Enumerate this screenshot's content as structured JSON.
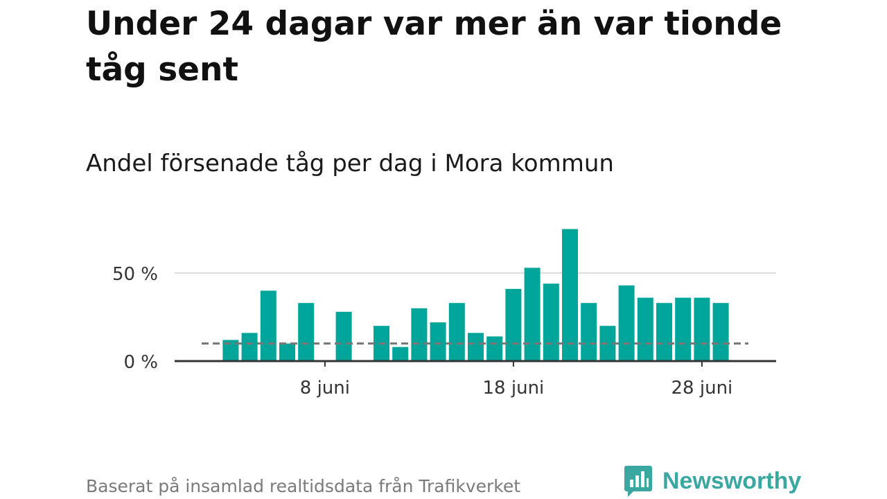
{
  "title": "Under 24 dagar var mer än var tionde tåg sent",
  "subtitle": "Andel försenade tåg per dag i Mora kommun",
  "footer": "Baserat på insamlad realtidsdata från Trafikverket",
  "brand": {
    "name": "Newsworthy",
    "icon": "newsworthy-logo-icon",
    "color": "#3aa7a0"
  },
  "chart_data": {
    "type": "bar",
    "title": "Andel försenade tåg per dag i Mora kommun",
    "unit": "%",
    "x": [
      "1 juni",
      "2 juni",
      "3 juni",
      "4 juni",
      "5 juni",
      "6 juni",
      "7 juni",
      "8 juni",
      "9 juni",
      "10 juni",
      "11 juni",
      "12 juni",
      "13 juni",
      "14 juni",
      "15 juni",
      "16 juni",
      "17 juni",
      "18 juni",
      "19 juni",
      "20 juni",
      "21 juni",
      "22 juni",
      "23 juni",
      "24 juni",
      "25 juni",
      "26 juni",
      "27 juni",
      "28 juni",
      "29 juni",
      "30 juni"
    ],
    "values": [
      null,
      null,
      12,
      16,
      40,
      10,
      33,
      null,
      28,
      null,
      20,
      8,
      30,
      22,
      33,
      16,
      14,
      41,
      53,
      44,
      75,
      33,
      20,
      43,
      36,
      33,
      36,
      36,
      33,
      null
    ],
    "reference_line": {
      "value": 10,
      "style": "dashed",
      "color": "#777777"
    },
    "xticks": [
      "8 juni",
      "18 juni",
      "28 juni"
    ],
    "yticks": [
      0,
      50
    ],
    "ytick_labels": [
      "0 %",
      "50 %"
    ],
    "ylim": [
      0,
      75
    ],
    "gridlines": true,
    "bar_color": "#00a59a"
  }
}
